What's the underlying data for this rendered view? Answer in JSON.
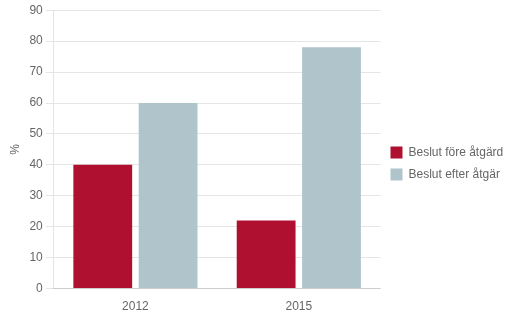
{
  "chart_data": {
    "type": "bar",
    "categories": [
      "2012",
      "2015"
    ],
    "series": [
      {
        "name": "Beslut före åtgärd",
        "color": "#b01030",
        "values": [
          40,
          22
        ]
      },
      {
        "name": "Beslut efter åtgär",
        "color": "#b0c4cc",
        "values": [
          60,
          78
        ]
      }
    ],
    "ylabel": "%",
    "ylim": [
      0,
      90
    ],
    "yticks": [
      0,
      10,
      20,
      30,
      40,
      50,
      60,
      70,
      80,
      90
    ],
    "grid": true,
    "legend": "right"
  }
}
